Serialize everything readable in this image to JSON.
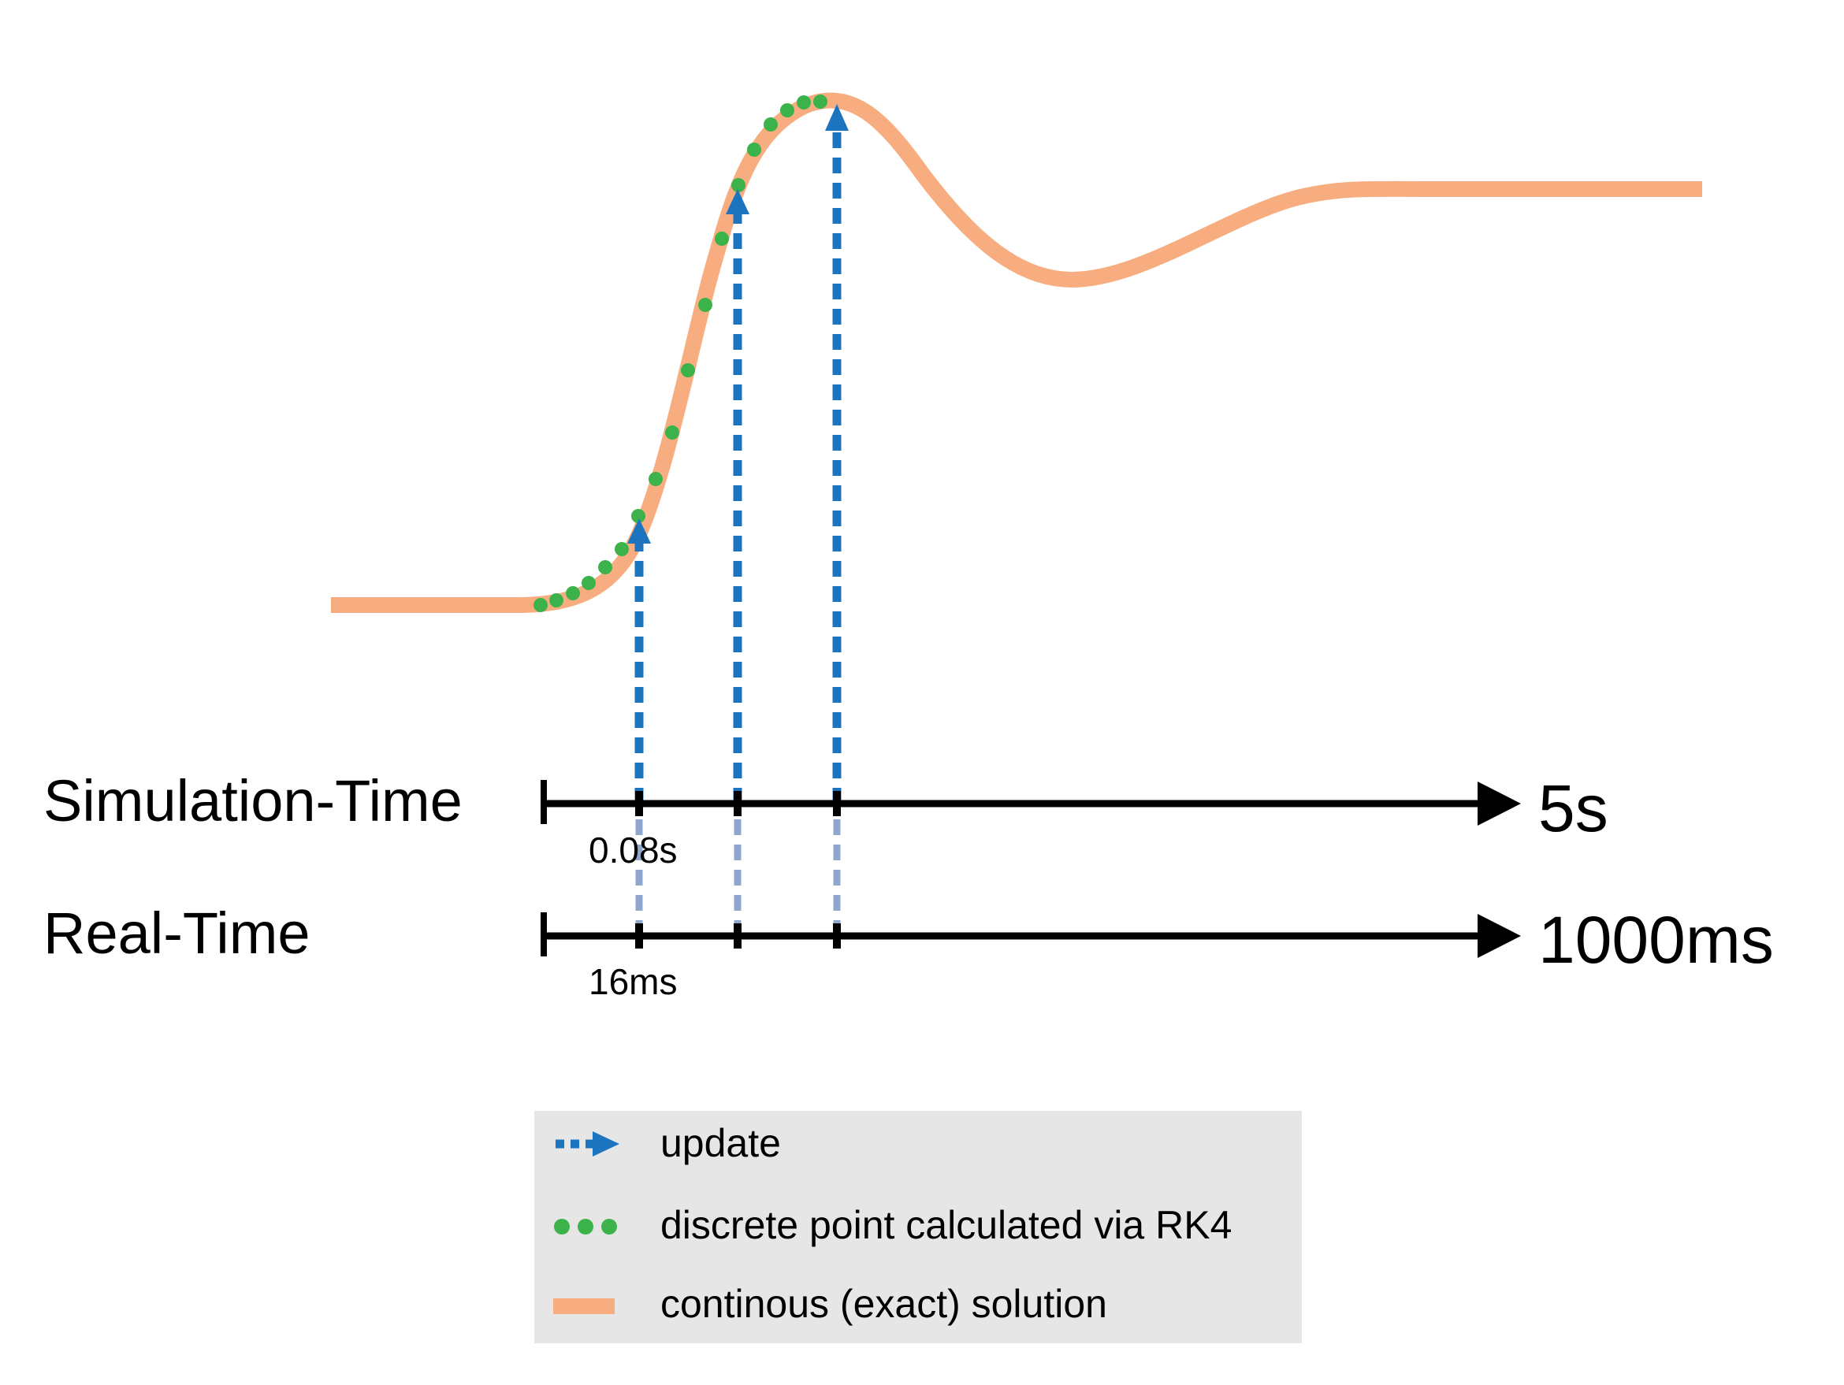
{
  "colors": {
    "curve": "#f8ad80",
    "points": "#3cb34a",
    "update": "#1b74bd",
    "update_faint": "#8fa7cc",
    "axis": "#000000",
    "legend_bg": "#e6e6e6"
  },
  "axes": {
    "simulation": {
      "label": "Simulation-Time",
      "end_label": "5s",
      "tick_label": "0.08s"
    },
    "real": {
      "label": "Real-Time",
      "end_label": "1000ms",
      "tick_label": "16ms"
    }
  },
  "legend": {
    "items": [
      {
        "key": "update",
        "label": "update",
        "symbol": "dotted-arrow"
      },
      {
        "key": "points",
        "label": "discrete point calculated via RK4",
        "symbol": "dots"
      },
      {
        "key": "curve",
        "label": "continous (exact) solution",
        "symbol": "thick-line"
      }
    ]
  }
}
